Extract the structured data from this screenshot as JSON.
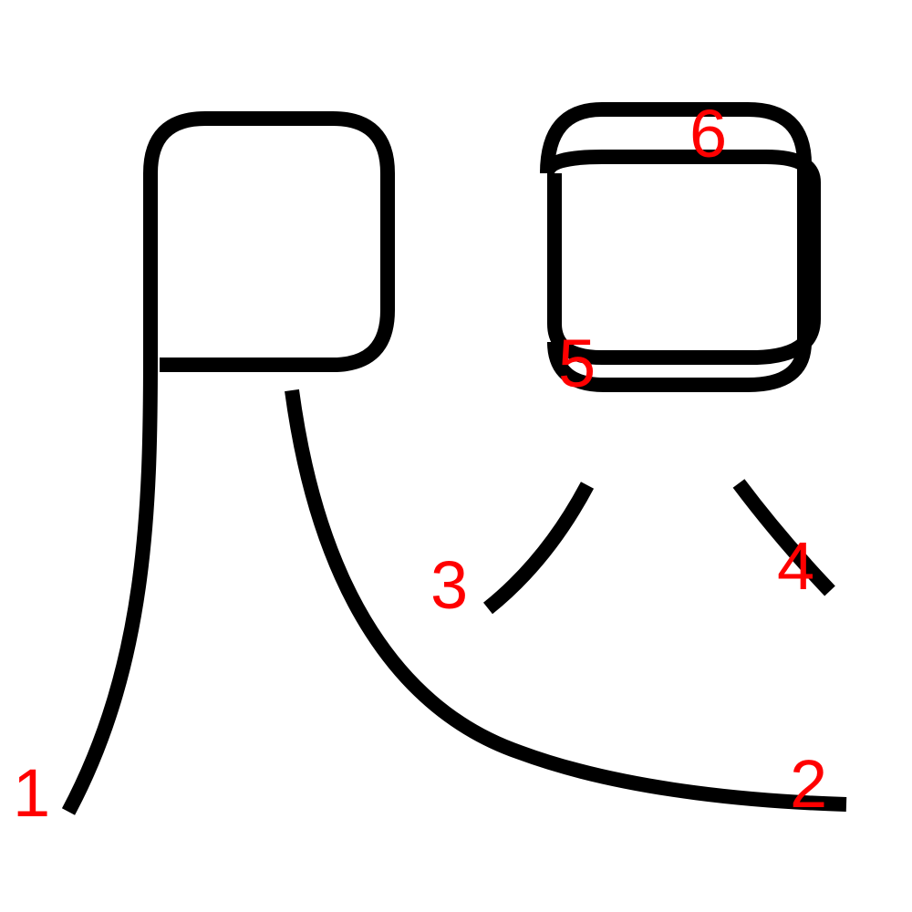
{
  "stroke_color": "#000000",
  "label_color": "#ff0000",
  "strokes": [
    {
      "number": "1"
    },
    {
      "number": "2"
    },
    {
      "number": "3"
    },
    {
      "number": "4"
    },
    {
      "number": "5"
    },
    {
      "number": "6"
    }
  ]
}
